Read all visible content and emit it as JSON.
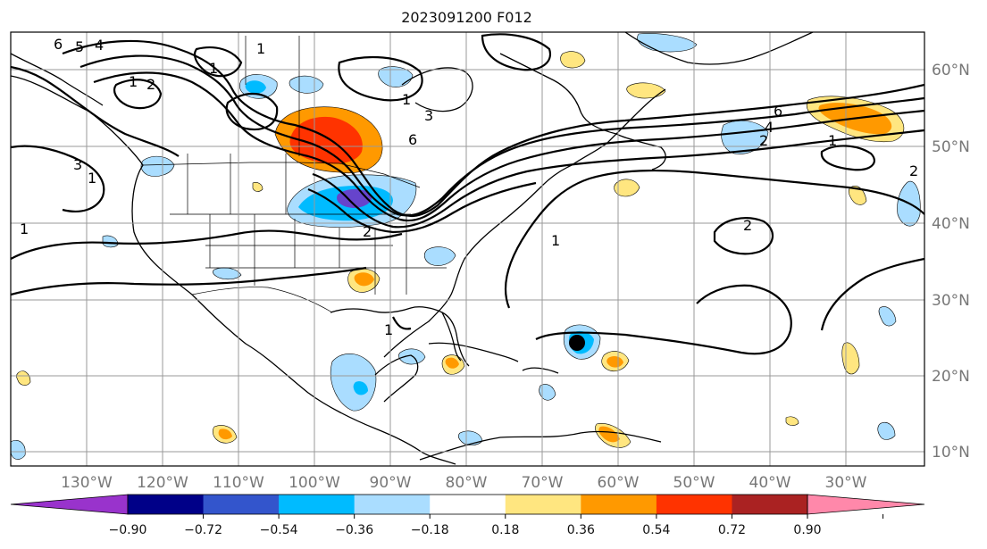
{
  "title": "2023091200 F012",
  "lat_labels": [
    "60°N",
    "50°N",
    "40°N",
    "30°N",
    "20°N",
    "10°N"
  ],
  "lon_labels": [
    "130°W",
    "120°W",
    "110°W",
    "100°W",
    "90°W",
    "80°W",
    "70°W",
    "60°W",
    "50°W",
    "40°W",
    "30°W"
  ],
  "contour_labels": [
    "6",
    "5",
    "4",
    "1",
    "2",
    "1",
    "3",
    "1",
    "1",
    "3",
    "6",
    "1",
    "2",
    "1",
    "6",
    "4",
    "2",
    "1",
    "2",
    "2",
    "1",
    "1"
  ],
  "colorbar": {
    "ticks": [
      "−0.90",
      "−0.72",
      "−0.54",
      "−0.36",
      "−0.18",
      "0.18",
      "0.36",
      "0.54",
      "0.72",
      "0.90"
    ],
    "colors": [
      "#9933cc",
      "#000088",
      "#3355cc",
      "#00bbff",
      "#aaddff",
      "#ffffff",
      "#ffe680",
      "#ff9900",
      "#ff3300",
      "#aa2222",
      "#ff88aa"
    ]
  },
  "colors": {
    "positive_light": "#ffe680",
    "positive_mid": "#ff9900",
    "positive_strong": "#ff3300",
    "negative_light": "#aaddff",
    "negative_mid": "#00bbff",
    "negative_strong": "#3355cc",
    "negative_deep": "#6644cc"
  },
  "storm_marker": {
    "lat": 24,
    "lon": -65,
    "icon": "storm-center-dot"
  }
}
